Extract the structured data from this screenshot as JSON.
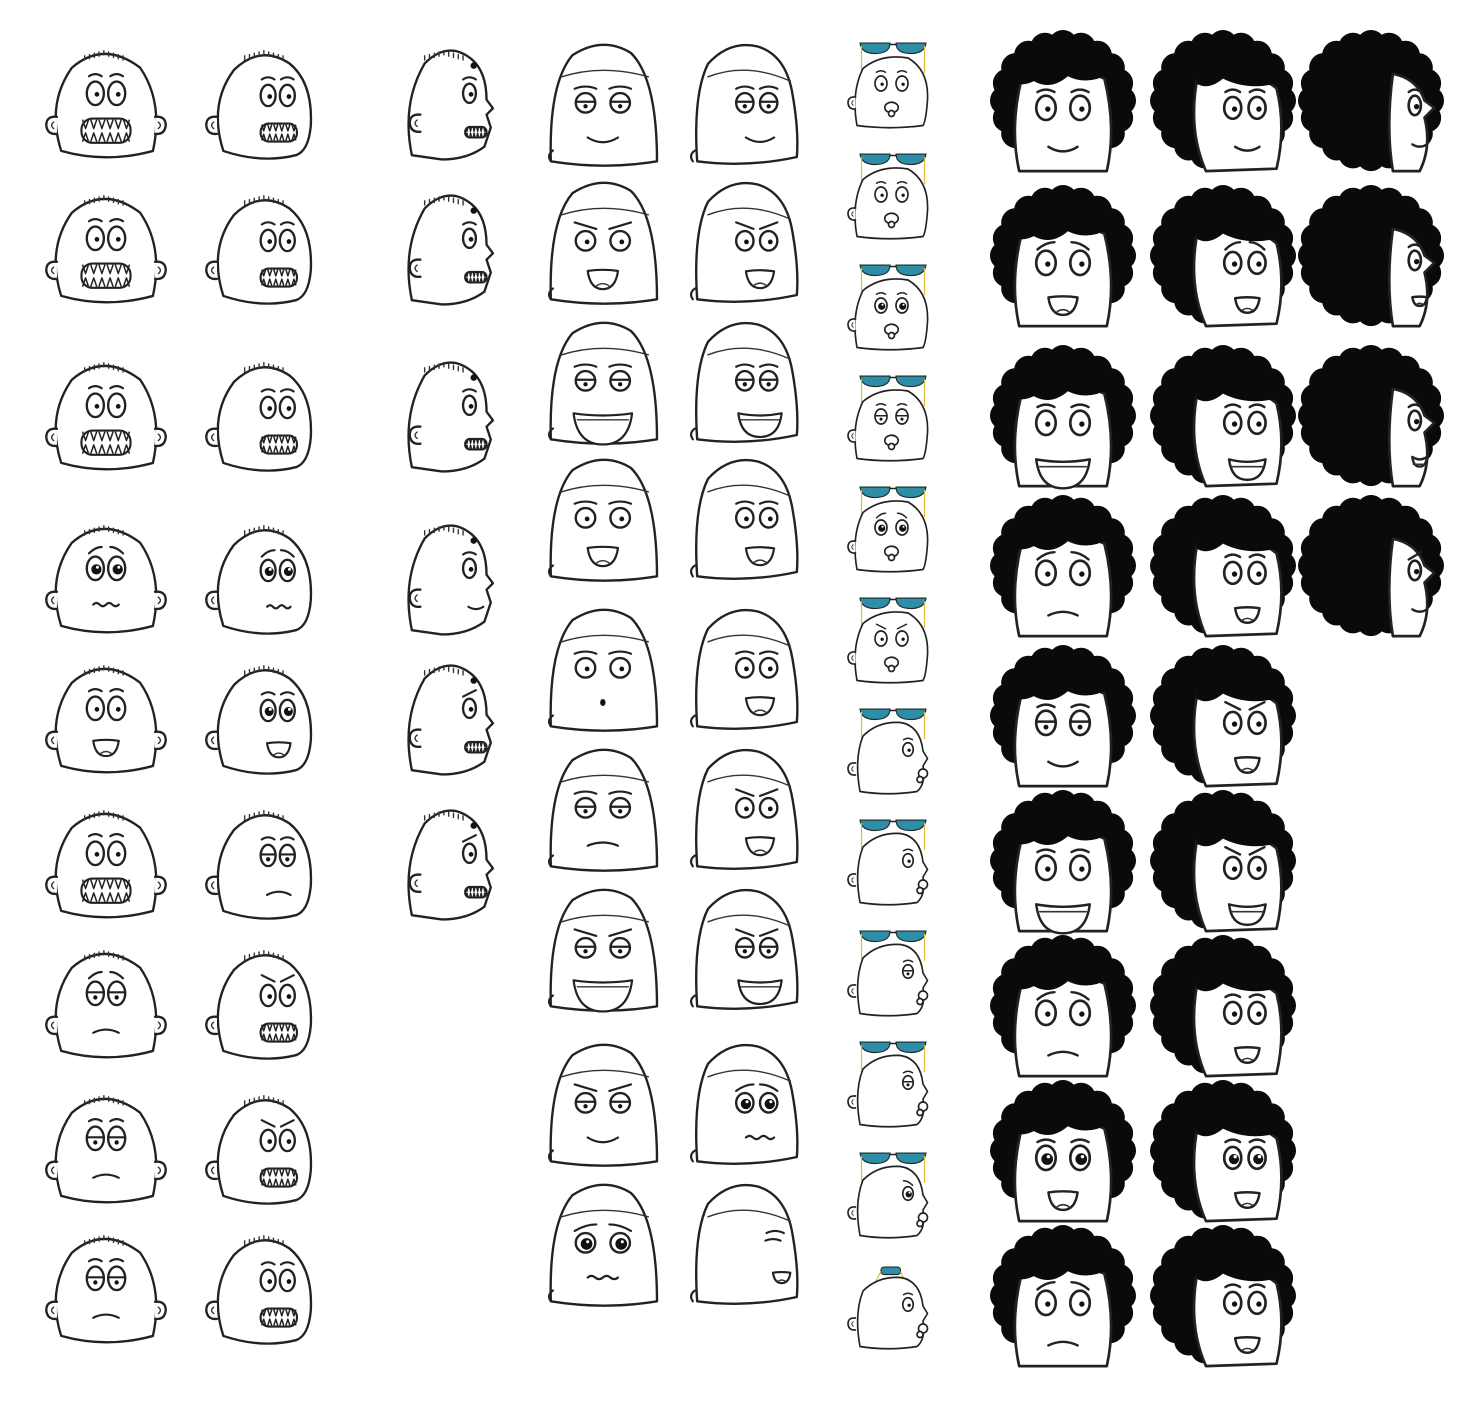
{
  "sheet": {
    "background": "#ffffff",
    "line_color": "#222222",
    "hair_color": "#0a0a0a",
    "sunglasses_lens_color": "#2e8ea8",
    "sunglasses_frame_color": "#e5b938"
  },
  "characters": [
    {
      "name": "stubble-hair-bald-kid",
      "views": [
        "front",
        "three-quarter",
        "profile"
      ],
      "expressions": [
        [
          "shocked-teeth",
          "shocked-teeth",
          "shocked-teeth-profile"
        ],
        [
          "toothy-grin",
          "toothy-grin",
          "toothy-grin-profile"
        ],
        [
          "gritted-scared",
          "gritted-scared",
          "gritted-scared-profile"
        ],
        [
          "worried",
          "worried",
          "toothy-profile"
        ],
        [
          "surprised-open-mouth",
          "happy-smile",
          "angry-teeth"
        ],
        [
          "grimace",
          "bored",
          "angry-grin"
        ],
        [
          "sad-squint",
          "angry-grin"
        ],
        [
          "sleepy",
          "angry-shout"
        ],
        [
          "smug",
          "screaming"
        ]
      ]
    },
    {
      "name": "bald-egg-head-guy",
      "views": [
        "front",
        "three-quarter"
      ],
      "expressions": [
        [
          "bored-eyes",
          "bored-eyes"
        ],
        [
          "annoyed-talk",
          "annoyed-talk"
        ],
        [
          "goofy-grin",
          "goofy-grin"
        ],
        [
          "shouting",
          "shouting"
        ],
        [
          "oh-surprised",
          "open-shout"
        ],
        [
          "unimpressed",
          "yelling"
        ],
        [
          "evil-grin",
          "evil-grin"
        ],
        [
          "angry-frown",
          "worried"
        ],
        [
          "sad",
          "profile-shout"
        ]
      ]
    },
    {
      "name": "baby-with-pacifier-and-sunglasses",
      "views": [
        "front",
        "three-quarter"
      ],
      "expressions": [
        "neutral-pacifier",
        "puzzled",
        "big-eyes",
        "sleepy",
        "sad-eyes",
        "angry",
        "looking-side",
        "pouting-side",
        "squint-side",
        "blank-side",
        "teary-side",
        "profile-kiss"
      ]
    },
    {
      "name": "afro-hair-boy",
      "views": [
        "front",
        "three-quarter",
        "profile"
      ],
      "expressions": [
        [
          "smile",
          "smile",
          "smile-profile"
        ],
        [
          "worried-talk",
          "worried-talk",
          "shout-profile"
        ],
        [
          "big-grin",
          "big-grin",
          "grin-profile"
        ],
        [
          "uneasy",
          "surprised",
          "angry-profile"
        ],
        [
          "smirk",
          "angry-shout"
        ],
        [
          "happy-teeth",
          "angry-grin"
        ],
        [
          "nervous",
          "laughing"
        ],
        [
          "cheerful",
          "cheerful"
        ],
        [
          "sad",
          "frightened"
        ]
      ]
    }
  ]
}
